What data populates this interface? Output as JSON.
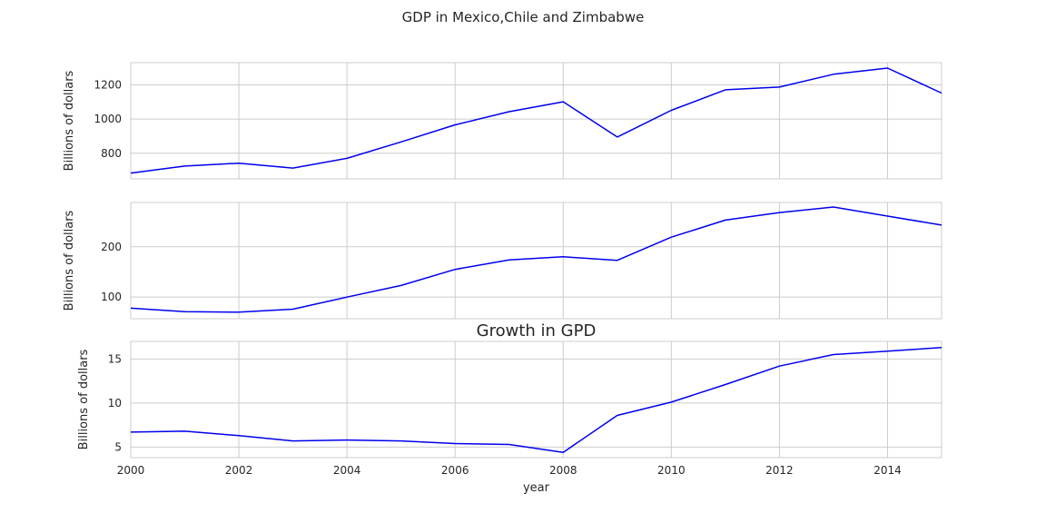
{
  "figure": {
    "title": "GDP in Mexico,Chile and Zimbabwe",
    "line_color": "#0000ee"
  },
  "chart_data": [
    {
      "type": "line",
      "title": "",
      "xlabel": "",
      "ylabel": "Billions of dollars",
      "x": [
        2000,
        2001,
        2002,
        2003,
        2004,
        2005,
        2006,
        2007,
        2008,
        2009,
        2010,
        2011,
        2012,
        2013,
        2014,
        2015
      ],
      "values": [
        684,
        725,
        742,
        713,
        770,
        866,
        966,
        1043,
        1101,
        895,
        1051,
        1171,
        1187,
        1262,
        1298,
        1152
      ],
      "xlim": [
        2000,
        2015
      ],
      "ylim": [
        650,
        1330
      ],
      "yticks": [
        800,
        1000,
        1200
      ],
      "xticks": [
        2000,
        2002,
        2004,
        2006,
        2008,
        2010,
        2012,
        2014
      ],
      "show_xticklabels": false,
      "grid": true
    },
    {
      "type": "line",
      "title": "",
      "xlabel": "",
      "ylabel": "Billions of dollars",
      "x": [
        2000,
        2001,
        2002,
        2003,
        2004,
        2005,
        2006,
        2007,
        2008,
        2009,
        2010,
        2011,
        2012,
        2013,
        2014,
        2015
      ],
      "values": [
        78,
        71,
        70,
        76,
        100,
        123,
        155,
        174,
        180,
        173,
        219,
        253,
        268,
        279,
        261,
        243
      ],
      "xlim": [
        2000,
        2015
      ],
      "ylim": [
        57,
        288
      ],
      "yticks": [
        100,
        200
      ],
      "xticks": [
        2000,
        2002,
        2004,
        2006,
        2008,
        2010,
        2012,
        2014
      ],
      "show_xticklabels": false,
      "grid": true
    },
    {
      "type": "line",
      "title": "Growth in GPD",
      "xlabel": "year",
      "ylabel": "Billions of dollars",
      "x": [
        2000,
        2001,
        2002,
        2003,
        2004,
        2005,
        2006,
        2007,
        2008,
        2009,
        2010,
        2011,
        2012,
        2013,
        2014,
        2015
      ],
      "values": [
        6.7,
        6.8,
        6.3,
        5.7,
        5.8,
        5.7,
        5.4,
        5.3,
        4.4,
        8.6,
        10.1,
        12.1,
        14.2,
        15.5,
        15.9,
        16.3
      ],
      "xlim": [
        2000,
        2015
      ],
      "ylim": [
        3.8,
        17.0
      ],
      "yticks": [
        5,
        10,
        15
      ],
      "xticks": [
        2000,
        2002,
        2004,
        2006,
        2008,
        2010,
        2012,
        2014
      ],
      "show_xticklabels": true,
      "grid": true
    }
  ]
}
